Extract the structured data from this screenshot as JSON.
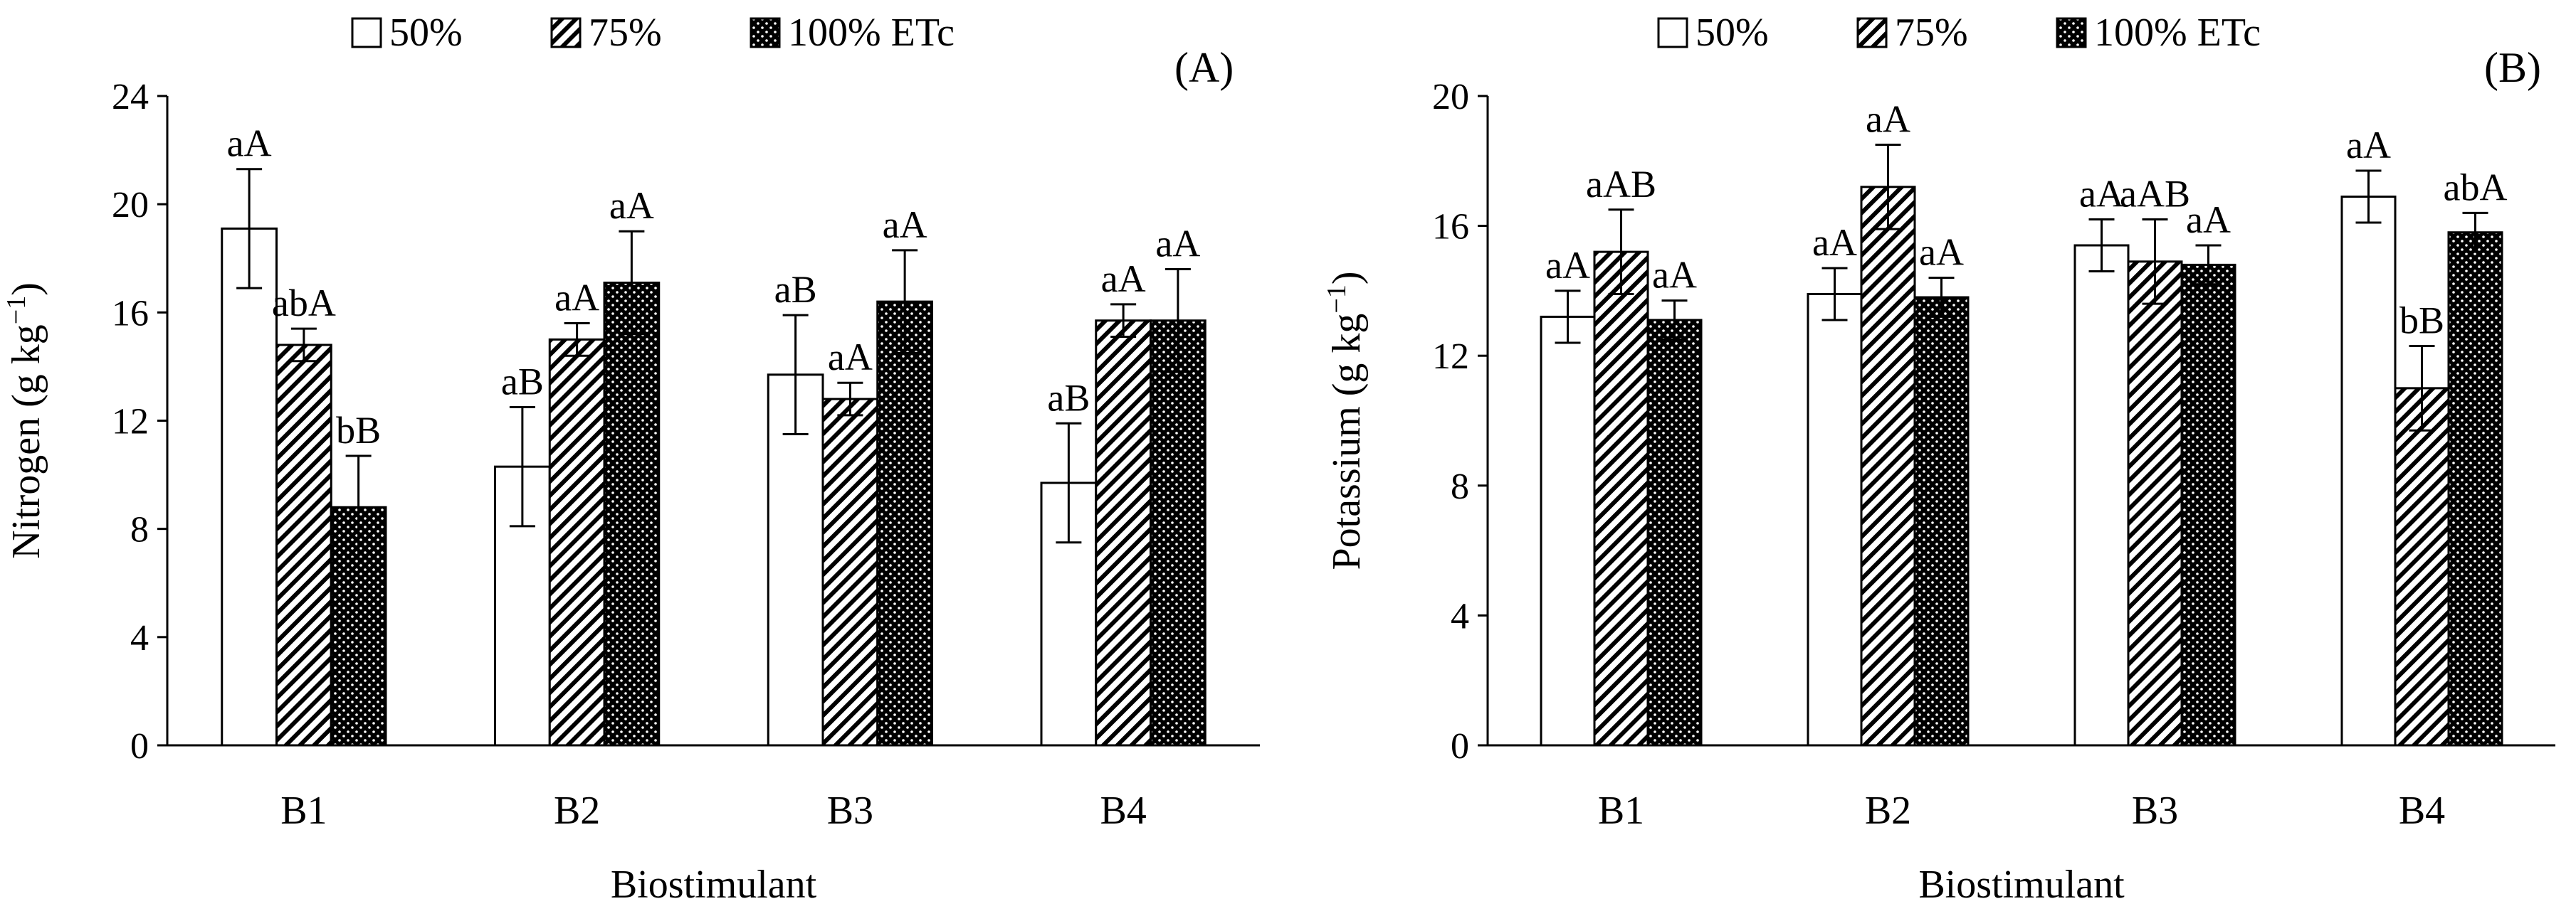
{
  "chart_data": [
    {
      "type": "bar",
      "panel_label": "(A)",
      "xlabel": "Biostimulant",
      "ylabel_main": "Nitrogen (g kg",
      "ylabel_exp": "−1",
      "ylabel_close": ")",
      "ylim": [
        0,
        24
      ],
      "yticks": [
        0,
        4,
        8,
        12,
        16,
        20,
        24
      ],
      "categories": [
        "B1",
        "B2",
        "B3",
        "B4"
      ],
      "series": [
        {
          "name": "50%",
          "pattern": "open",
          "values": [
            19.1,
            10.3,
            13.7,
            9.7
          ],
          "errors": [
            2.2,
            2.2,
            2.2,
            2.2
          ],
          "labels": [
            "aA",
            "aB",
            "aB",
            "aB"
          ]
        },
        {
          "name": "75%",
          "pattern": "hatch",
          "values": [
            14.8,
            15.0,
            12.8,
            15.7
          ],
          "errors": [
            0.6,
            0.6,
            0.6,
            0.6
          ],
          "labels": [
            "abA",
            "aA",
            "aA",
            "aA"
          ]
        },
        {
          "name": "100% ETc",
          "pattern": "dots",
          "values": [
            8.8,
            17.1,
            16.4,
            15.7
          ],
          "errors": [
            1.9,
            1.9,
            1.9,
            1.9
          ],
          "labels": [
            "bB",
            "aA",
            "aA",
            "aA"
          ]
        }
      ]
    },
    {
      "type": "bar",
      "panel_label": "(B)",
      "xlabel": "Biostimulant",
      "ylabel_main": "Potassium (g kg",
      "ylabel_exp": "−1",
      "ylabel_close": ")",
      "ylim": [
        0,
        20
      ],
      "yticks": [
        0,
        4,
        8,
        12,
        16,
        20
      ],
      "categories": [
        "B1",
        "B2",
        "B3",
        "B4"
      ],
      "series": [
        {
          "name": "50%",
          "pattern": "open",
          "values": [
            13.2,
            13.9,
            15.4,
            16.9
          ],
          "errors": [
            0.8,
            0.8,
            0.8,
            0.8
          ],
          "labels": [
            "aA",
            "aA",
            "aA",
            "aA"
          ]
        },
        {
          "name": "75%",
          "pattern": "hatch",
          "values": [
            15.2,
            17.2,
            14.9,
            11.0
          ],
          "errors": [
            1.3,
            1.3,
            1.3,
            1.3
          ],
          "labels": [
            "aAB",
            "aA",
            "aAB",
            "bB"
          ]
        },
        {
          "name": "100% ETc",
          "pattern": "dots",
          "values": [
            13.1,
            13.8,
            14.8,
            15.8
          ],
          "errors": [
            0.6,
            0.6,
            0.6,
            0.6
          ],
          "labels": [
            "aA",
            "aA",
            "aA",
            "abA"
          ]
        }
      ]
    }
  ]
}
